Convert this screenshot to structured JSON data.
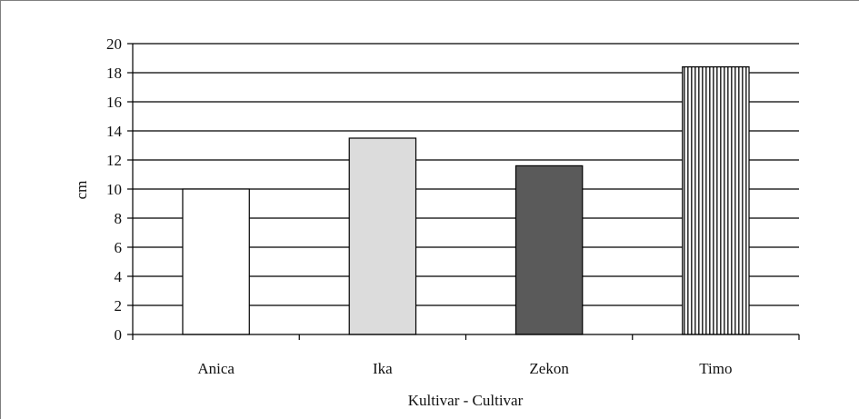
{
  "chart_data": {
    "type": "bar",
    "categories": [
      "Anica",
      "Ika",
      "Zekon",
      "Timo"
    ],
    "values": [
      10.0,
      13.5,
      11.6,
      18.4
    ],
    "xlabel": "Kultivar - Cultivar",
    "ylabel": "cm",
    "ylim": [
      0,
      20
    ],
    "yticks": [
      0,
      2,
      4,
      6,
      8,
      10,
      12,
      14,
      16,
      18,
      20
    ],
    "grid": true,
    "bar_fills": [
      "#ffffff",
      "#dcdcdc",
      "#5a5a5a",
      "vertical-stripes"
    ]
  }
}
